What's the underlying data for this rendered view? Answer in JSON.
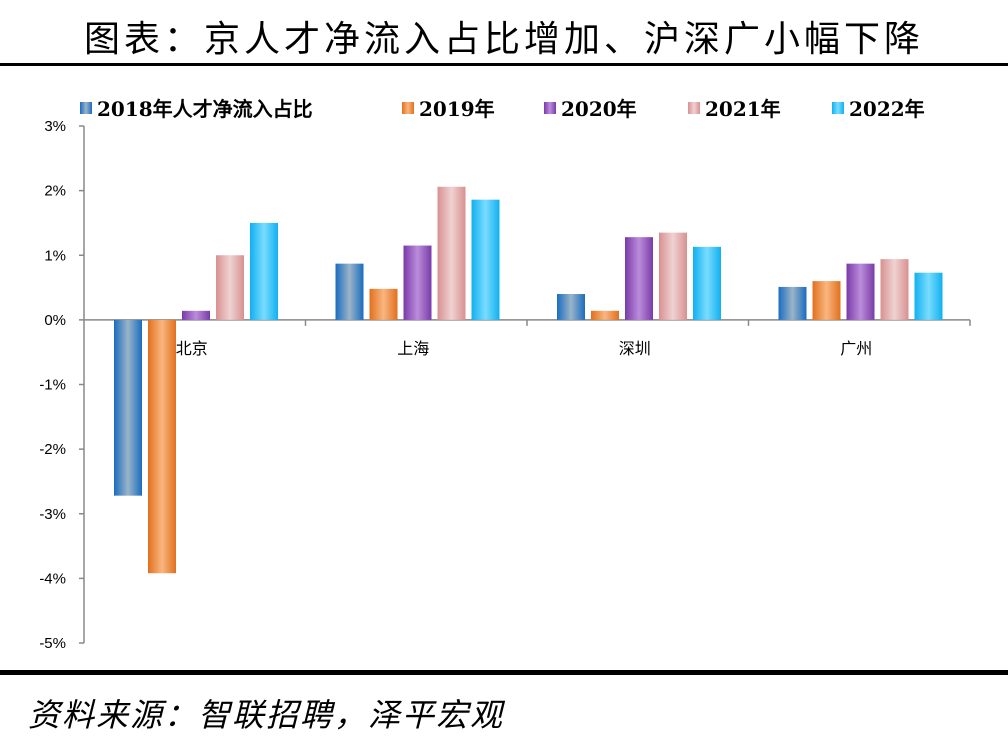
{
  "title": "图表：京人才净流入占比增加、沪深广小幅下降",
  "source": "资料来源：智联招聘，泽平宏观",
  "chart_data": {
    "type": "bar",
    "title": "图表：京人才净流入占比增加、沪深广小幅下降",
    "categories": [
      "北京",
      "上海",
      "深圳",
      "广州"
    ],
    "series": [
      {
        "name": "2018年人才净流入占比",
        "values": [
          -2.72,
          0.87,
          0.4,
          0.51
        ],
        "color": "#1a6cc0",
        "light": "#9ab4c8"
      },
      {
        "name": "2019年",
        "values": [
          -3.92,
          0.48,
          0.14,
          0.6
        ],
        "color": "#e2701e",
        "light": "#f9b680"
      },
      {
        "name": "2020年",
        "values": [
          0.14,
          1.15,
          1.28,
          0.87
        ],
        "color": "#7a3aa8",
        "light": "#bb8ddb"
      },
      {
        "name": "2021年",
        "values": [
          1.0,
          2.06,
          1.35,
          0.94
        ],
        "color": "#d89090",
        "light": "#f0d2d2"
      },
      {
        "name": "2022年",
        "values": [
          1.5,
          1.86,
          1.13,
          0.73
        ],
        "color": "#10b0f0",
        "light": "#7adcff"
      }
    ],
    "yticks": [
      "3%",
      "2%",
      "1%",
      "0%",
      "-1%",
      "-2%",
      "-3%",
      "-4%",
      "-5%"
    ],
    "ylim": [
      -5,
      3
    ],
    "xlabel": "",
    "ylabel": "",
    "legend": "top",
    "grid": false
  }
}
